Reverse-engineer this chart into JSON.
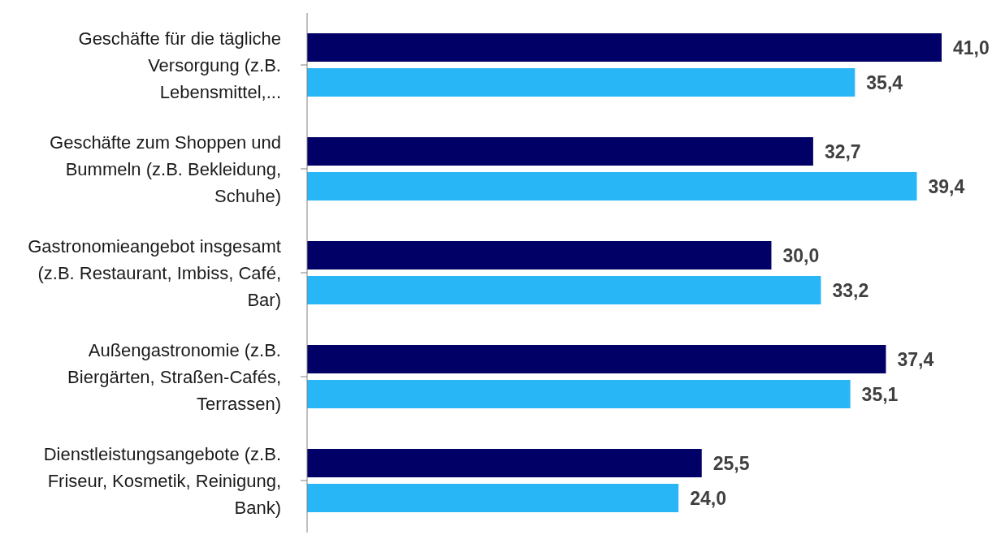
{
  "chart_data": {
    "type": "bar",
    "orientation": "horizontal",
    "categories": [
      "Geschäfte für die tägliche Versorgung (z.B. Lebensmittel,...",
      "Geschäfte zum Shoppen und Bummeln (z.B. Bekleidung, Schuhe)",
      "Gastronomieangebot insgesamt (z.B. Restaurant, Imbiss, Café, Bar)",
      "Außengastronomie (z.B. Biergärten, Straßen-Cafés, Terrassen)",
      "Dienstleistungsangebote (z.B. Friseur, Kosmetik, Reinigung, Bank)"
    ],
    "series": [
      {
        "color": "#000066",
        "values": [
          41.0,
          32.7,
          30.0,
          37.4,
          25.5
        ],
        "value_labels": [
          "41,0",
          "32,7",
          "30,0",
          "37,4",
          "25,5"
        ]
      },
      {
        "color": "#29b6f6",
        "values": [
          35.4,
          39.4,
          33.2,
          35.1,
          24.0
        ],
        "value_labels": [
          "35,4",
          "39,4",
          "33,2",
          "35,1",
          "24,0"
        ]
      }
    ],
    "grid": false,
    "legend": false
  }
}
